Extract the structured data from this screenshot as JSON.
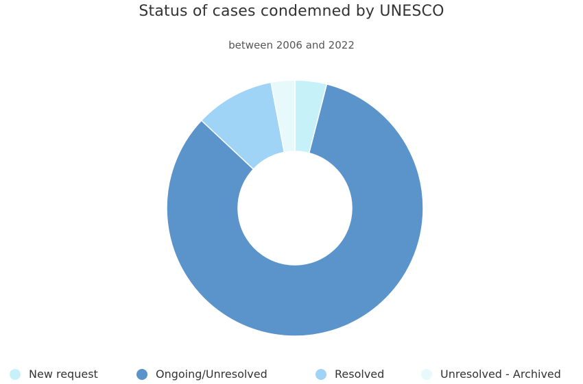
{
  "chart_data": {
    "type": "pie",
    "variant": "donut",
    "title": "Status of cases condemned by UNESCO",
    "subtitle": "between 2006 and 2022",
    "legend_position": "bottom",
    "slices": [
      {
        "label": "New request",
        "value": 4,
        "color": "#c6f1f9"
      },
      {
        "label": "Ongoing/Unresolved",
        "value": 83,
        "color": "#5a94cb"
      },
      {
        "label": "Resolved",
        "value": 10,
        "color": "#9fd4f6"
      },
      {
        "label": "Unresolved - Archived",
        "value": 3,
        "color": "#e8f9fc"
      }
    ]
  }
}
